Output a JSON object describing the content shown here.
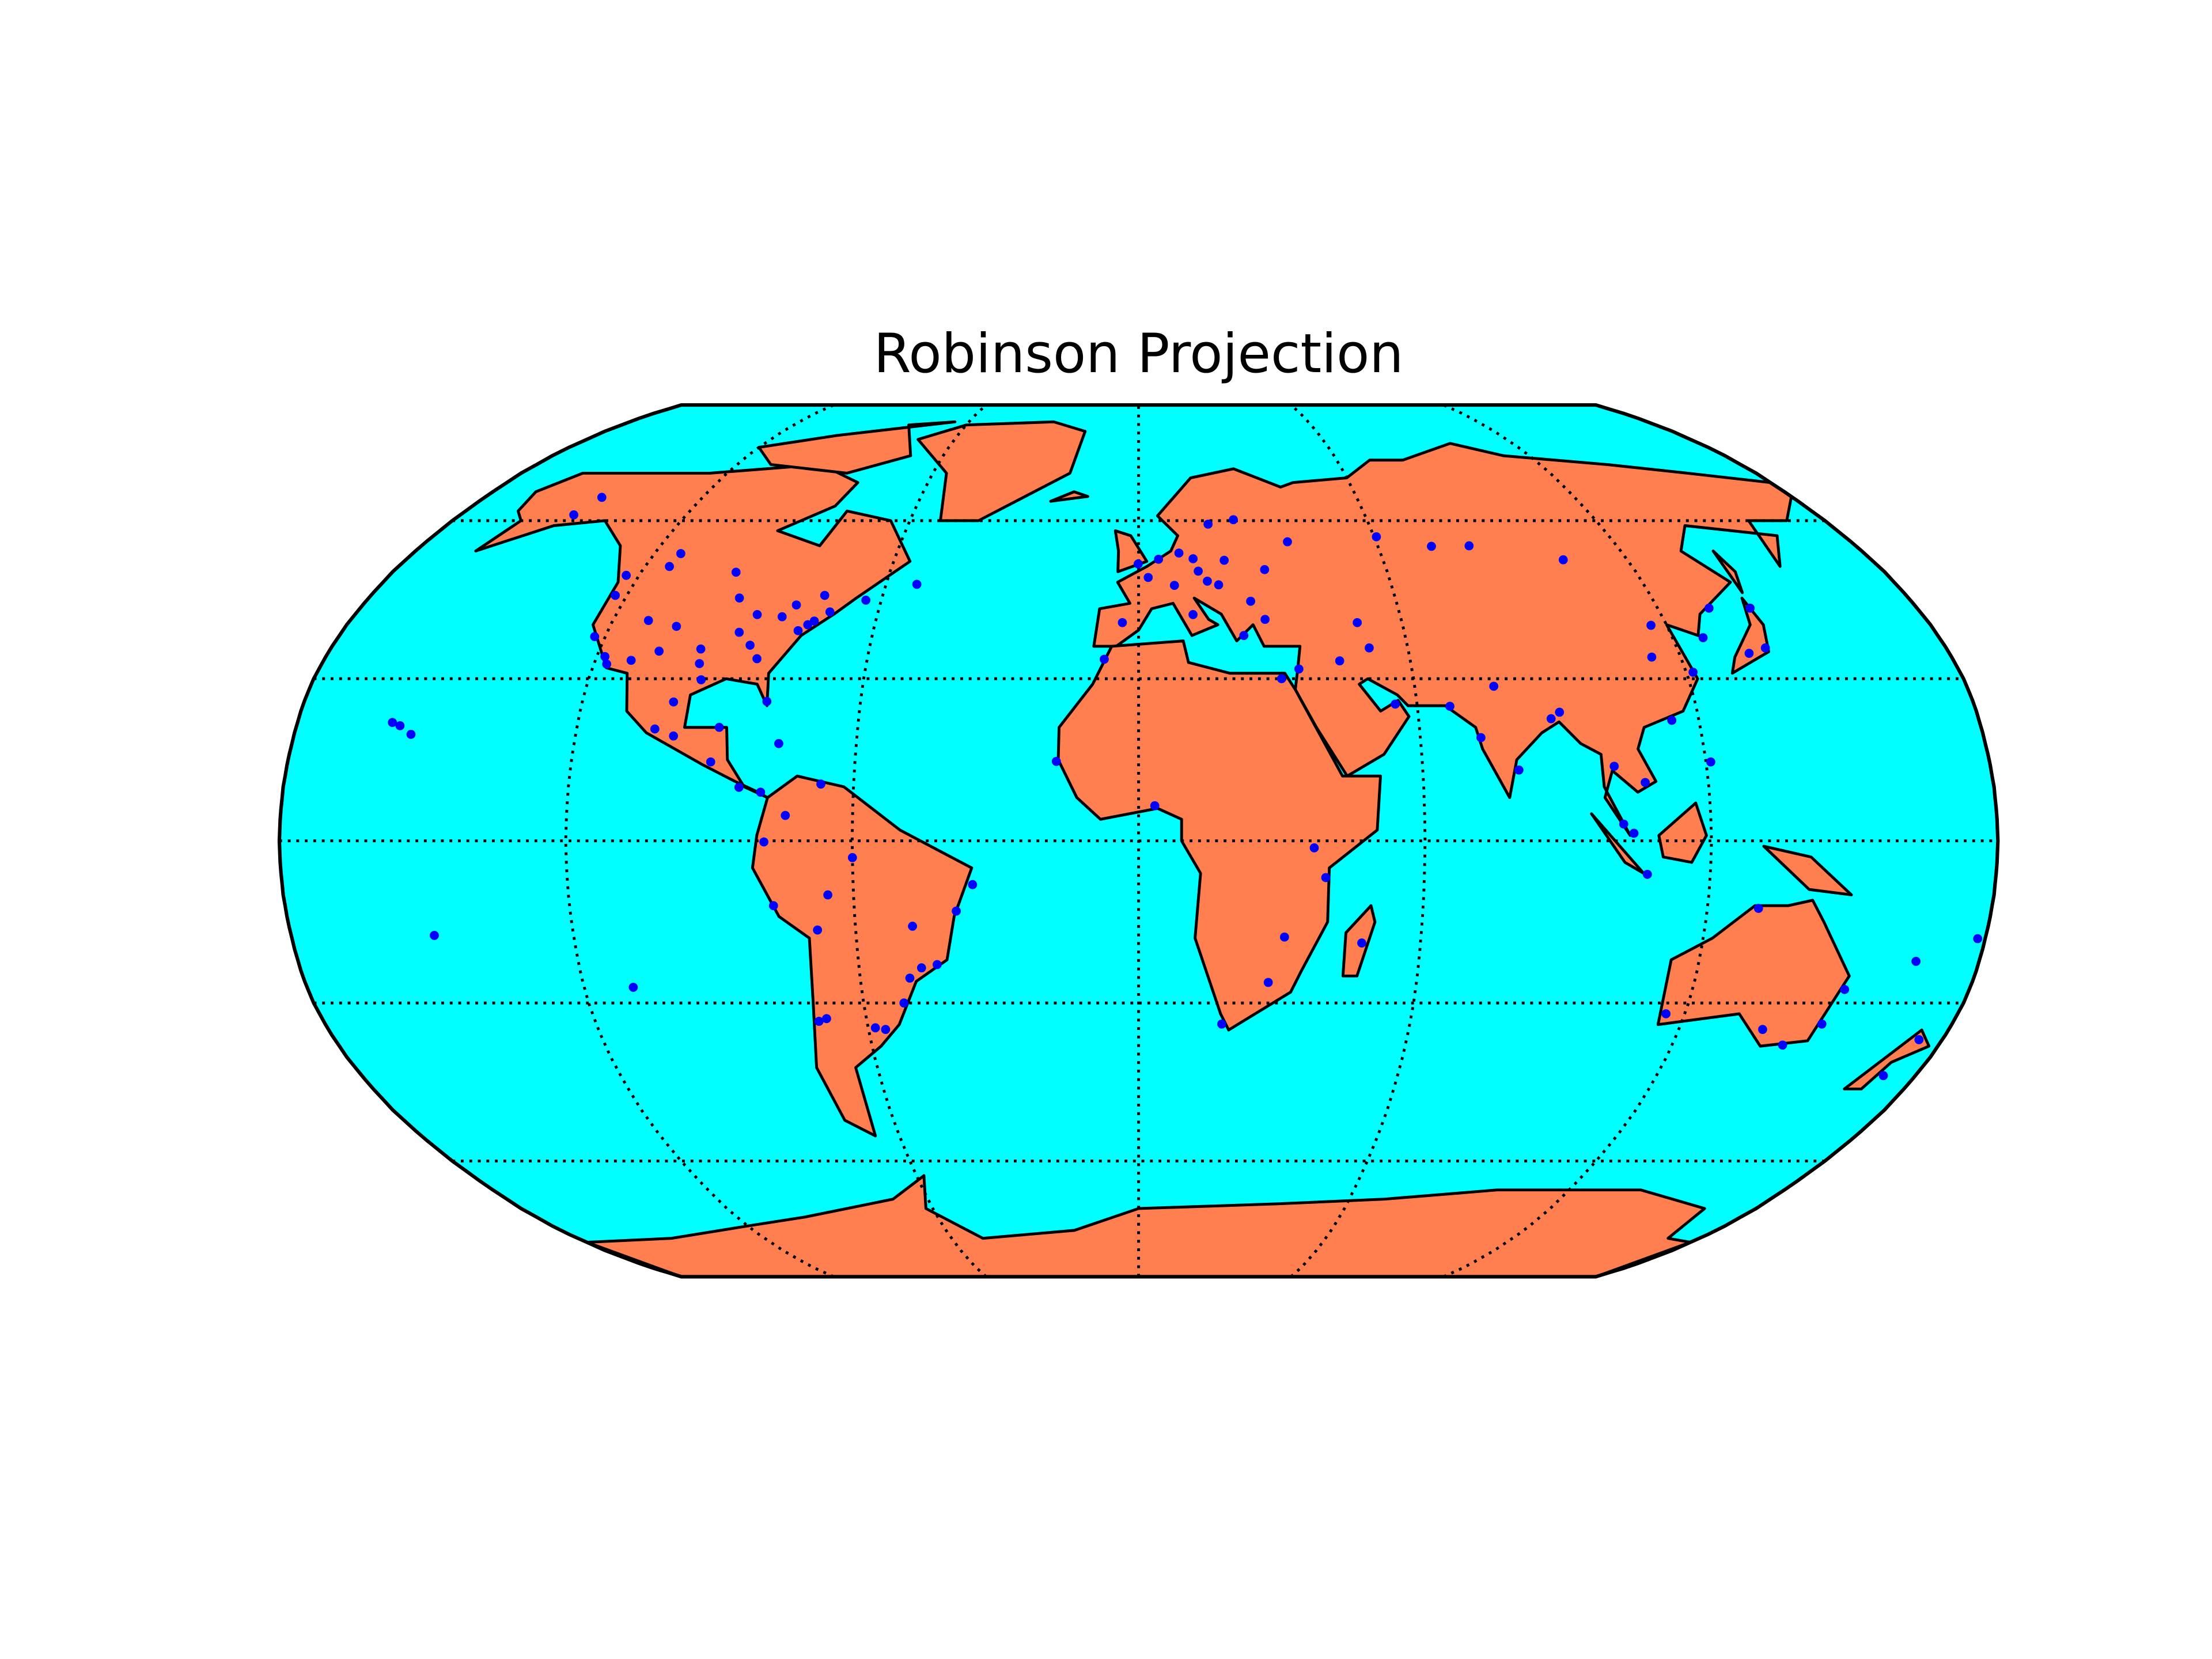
{
  "chart_data": {
    "type": "map",
    "title": "Robinson Projection",
    "ocean_color": "#00ffff",
    "land_color": "#ff7f50",
    "graticule": true,
    "points": {
      "color": "#0000ff",
      "lon": [
        -122.4,
        -118.2,
        -117.2,
        -112.1,
        -104.9,
        -97.5,
        -95.4,
        -90.2,
        -87.6,
        -84.4,
        -80.2,
        -77.0,
        -74.0,
        -71.1,
        -75.2,
        -81.7,
        -86.8,
        -93.3,
        -96.8,
        -106.6,
        -111.9,
        -122.7,
        -123.1,
        -114.1,
        -113.5,
        -97.1,
        -79.4,
        -73.6,
        -63.6,
        -52.7,
        -149.9,
        -147.7,
        -99.1,
        -103.3,
        -100.3,
        -89.6,
        -90.5,
        -84.1,
        -79.5,
        -76.5,
        -66.9,
        -74.1,
        -78.5,
        -77.0,
        -68.1,
        -70.6,
        -58.4,
        -56.2,
        -46.6,
        -43.2,
        -47.9,
        -38.5,
        -34.9,
        -60.0,
        -49.3,
        -51.2,
        -65.4,
        -68.8,
        -157.9,
        -155.1,
        -149.6,
        -0.1,
        2.3,
        -3.7,
        12.5,
        13.4,
        16.4,
        21.0,
        18.1,
        24.9,
        30.5,
        37.6,
        28.9,
        23.7,
        4.9,
        8.5,
        10.0,
        14.4,
        19.0,
        26.1,
        49.8,
        60.6,
        73.4,
        82.9,
        104.3,
        113.6,
        131.9,
        35.2,
        31.2,
        3.4,
        -7.6,
        -17.4,
        36.8,
        39.3,
        28.0,
        18.4,
        31.0,
        47.5,
        55.3,
        51.4,
        44.4,
        67.0,
        72.9,
        77.2,
        88.4,
        80.3,
        90.4,
        100.5,
        106.7,
        101.7,
        103.8,
        106.8,
        121.0,
        114.2,
        116.4,
        121.5,
        126.9,
        139.7,
        135.5,
        141.4,
        151.2,
        144.9,
        153.0,
        138.6,
        115.9,
        130.8,
        174.8,
        172.6,
        166.5,
        178.4,
        -109.4,
        -159.7
      ],
      "lat": [
        37.8,
        34.1,
        32.7,
        33.4,
        39.7,
        35.5,
        29.8,
        38.6,
        41.9,
        33.7,
        25.8,
        38.9,
        40.7,
        42.4,
        40.0,
        41.5,
        36.2,
        45.0,
        32.8,
        35.1,
        40.8,
        45.5,
        49.3,
        51.0,
        53.5,
        49.9,
        43.7,
        45.5,
        44.6,
        47.6,
        61.2,
        64.8,
        19.4,
        20.7,
        25.7,
        21.0,
        14.6,
        9.9,
        9.0,
        18.0,
        10.5,
        4.7,
        -0.2,
        -12.0,
        -16.5,
        -33.4,
        -34.6,
        -34.9,
        -23.5,
        -22.9,
        -15.8,
        -13.0,
        -8.1,
        -3.1,
        -25.4,
        -30.0,
        -10.0,
        -32.9,
        21.3,
        19.7,
        -17.5,
        51.5,
        48.9,
        40.4,
        41.9,
        52.5,
        48.2,
        52.2,
        59.3,
        60.2,
        50.4,
        55.8,
        41.0,
        38.0,
        52.4,
        47.4,
        53.6,
        50.1,
        47.5,
        44.4,
        40.4,
        56.8,
        54.9,
        55.0,
        52.3,
        34.0,
        43.1,
        31.8,
        30.0,
        6.5,
        33.6,
        14.7,
        -1.3,
        -6.8,
        -26.2,
        -33.9,
        -17.8,
        -18.9,
        25.3,
        35.7,
        33.3,
        24.9,
        19.1,
        28.6,
        22.6,
        13.1,
        23.8,
        13.8,
        10.8,
        3.1,
        1.4,
        -6.2,
        14.6,
        22.3,
        39.9,
        31.2,
        37.6,
        35.7,
        34.7,
        43.1,
        -33.9,
        -37.8,
        -27.5,
        -34.9,
        -32.0,
        -12.5,
        -36.8,
        -43.5,
        -22.3,
        -18.1,
        -27.1,
        21.9
      ]
    }
  }
}
